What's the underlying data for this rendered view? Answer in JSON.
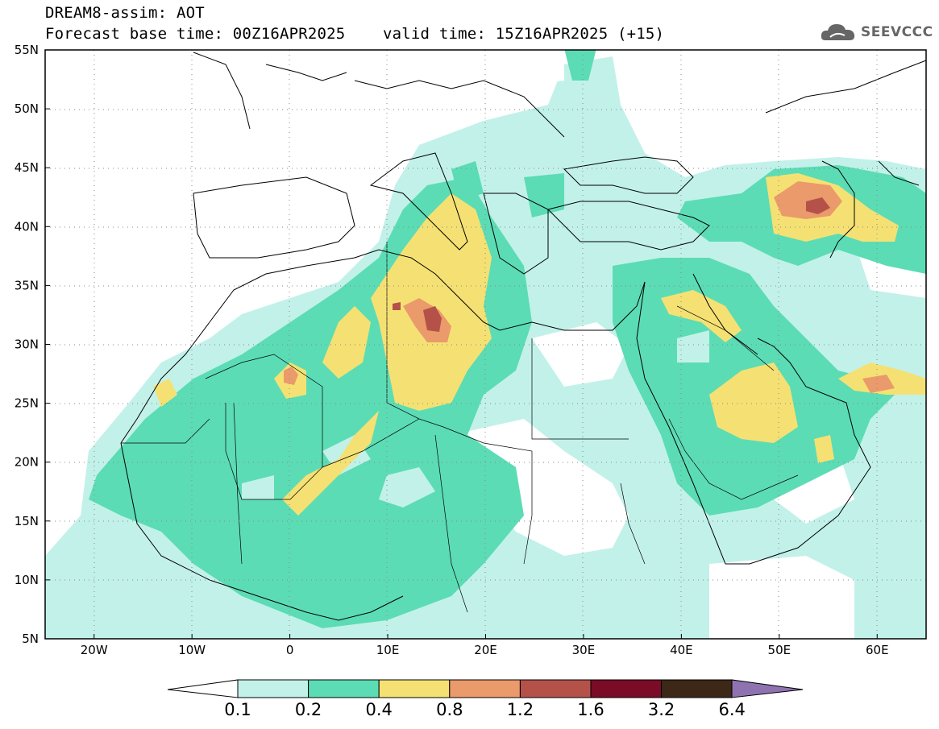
{
  "header": {
    "title_line1": "DREAM8-assim: AOT",
    "title_line2": "Forecast base time: 00Z16APR2025    valid time: 15Z16APR2025 (+15)",
    "logo_text": "SEEVCCC"
  },
  "map": {
    "variable": "AOT",
    "extent": {
      "lon_min": -25,
      "lon_max": 65,
      "lat_min": 5,
      "lat_max": 55
    },
    "lon_ticks": [
      "20W",
      "10W",
      "0",
      "10E",
      "20E",
      "30E",
      "40E",
      "50E",
      "60E"
    ],
    "lat_ticks": [
      "5N",
      "10N",
      "15N",
      "20N",
      "25N",
      "30N",
      "35N",
      "40N",
      "45N",
      "50N",
      "55N"
    ],
    "gridlines": "dotted"
  },
  "colorbar": {
    "labels": [
      "0.1",
      "0.2",
      "0.4",
      "0.8",
      "1.2",
      "1.6",
      "3.2",
      "6.4"
    ],
    "colors": [
      "#c2f1ea",
      "#5cdcb4",
      "#f5e173",
      "#ea9a6b",
      "#b4524a",
      "#7a0c28",
      "#3d2818",
      "#8e73b0"
    ],
    "below_color": "#ffffff"
  },
  "chart_data": {
    "type": "heatmap",
    "title": "DREAM8-assim: AOT",
    "xlabel": "",
    "ylabel": "",
    "xlim": [
      -25,
      65
    ],
    "ylim": [
      5,
      55
    ],
    "levels": [
      0.1,
      0.2,
      0.4,
      0.8,
      1.2,
      1.6,
      3.2,
      6.4
    ],
    "regions": [
      {
        "level": 0.4,
        "centroid": [
          14,
          31
        ]
      },
      {
        "level": 0.8,
        "centroid": [
          14,
          31
        ]
      },
      {
        "level": 1.2,
        "centroid": [
          14.5,
          31.5
        ]
      },
      {
        "level": 0.4,
        "centroid": [
          7,
          21
        ]
      },
      {
        "level": 0.8,
        "centroid": [
          0,
          27
        ]
      },
      {
        "level": 0.4,
        "centroid": [
          48,
          25
        ]
      },
      {
        "level": 0.8,
        "centroid": [
          53,
          42
        ]
      },
      {
        "level": 1.2,
        "centroid": [
          53,
          41
        ]
      },
      {
        "level": 0.4,
        "centroid": [
          62,
          27
        ]
      },
      {
        "level": 0.8,
        "centroid": [
          63,
          26
        ]
      }
    ]
  }
}
